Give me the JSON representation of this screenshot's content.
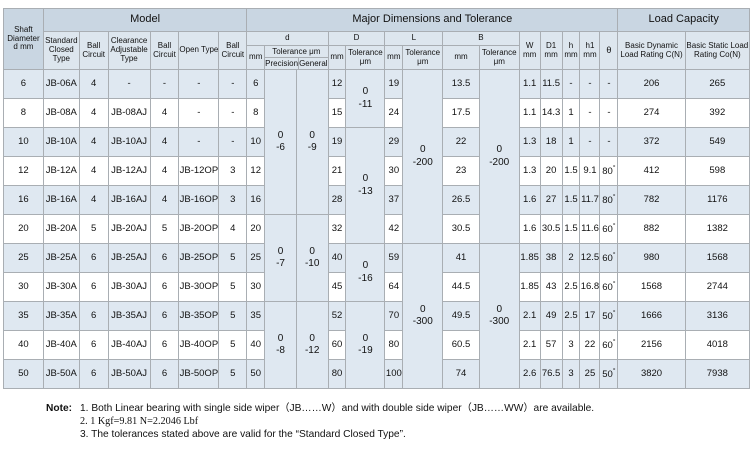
{
  "header": {
    "shaft_diameter": "Shaft Diameter d mm",
    "model": "Model",
    "major": "Major Dimensions and Tolerance",
    "load": "Load Capacity",
    "standard_closed_type": "Standard Closed Type",
    "ball_circuit": "Ball Circuit",
    "clearance_adjustable_type": "Clearance Adjustable Type",
    "open_type": "Open Type",
    "d": "d",
    "D": "D",
    "L": "L",
    "B": "B",
    "W": "W mm",
    "D1": "D1 mm",
    "h": "h mm",
    "h1": "h1 mm",
    "theta": "θ",
    "mm": "mm",
    "tolerance_um": "Tolerance μm",
    "precision": "Precision",
    "general": "General",
    "dynamic": "Basic Dynamic Load Rating C(N)",
    "static": "Basic Static Load Rating Co(N)"
  },
  "rows": [
    {
      "shaft": "6",
      "closed": "JB-06A",
      "ball1": "4",
      "clearance": "-",
      "ball2": "-",
      "open": "-",
      "ball3": "-",
      "d": "6",
      "D": "12",
      "L": "19",
      "B": "13.5",
      "W": "1.1",
      "D1": "11.5",
      "h": "-",
      "h1": "-",
      "theta": "-",
      "C": "206",
      "Co": "265"
    },
    {
      "shaft": "8",
      "closed": "JB-08A",
      "ball1": "4",
      "clearance": "JB-08AJ",
      "ball2": "4",
      "open": "-",
      "ball3": "-",
      "d": "8",
      "D": "15",
      "L": "24",
      "B": "17.5",
      "W": "1.1",
      "D1": "14.3",
      "h": "1",
      "h1": "-",
      "theta": "-",
      "C": "274",
      "Co": "392"
    },
    {
      "shaft": "10",
      "closed": "JB-10A",
      "ball1": "4",
      "clearance": "JB-10AJ",
      "ball2": "4",
      "open": "-",
      "ball3": "-",
      "d": "10",
      "D": "19",
      "L": "29",
      "B": "22",
      "W": "1.3",
      "D1": "18",
      "h": "1",
      "h1": "-",
      "theta": "-",
      "C": "372",
      "Co": "549"
    },
    {
      "shaft": "12",
      "closed": "JB-12A",
      "ball1": "4",
      "clearance": "JB-12AJ",
      "ball2": "4",
      "open": "JB-12OP",
      "ball3": "3",
      "d": "12",
      "D": "21",
      "L": "30",
      "B": "23",
      "W": "1.3",
      "D1": "20",
      "h": "1.5",
      "h1": "9.1",
      "theta": "80",
      "C": "412",
      "Co": "598"
    },
    {
      "shaft": "16",
      "closed": "JB-16A",
      "ball1": "4",
      "clearance": "JB-16AJ",
      "ball2": "4",
      "open": "JB-16OP",
      "ball3": "3",
      "d": "16",
      "D": "28",
      "L": "37",
      "B": "26.5",
      "W": "1.6",
      "D1": "27",
      "h": "1.5",
      "h1": "11.7",
      "theta": "80",
      "C": "782",
      "Co": "1176"
    },
    {
      "shaft": "20",
      "closed": "JB-20A",
      "ball1": "5",
      "clearance": "JB-20AJ",
      "ball2": "5",
      "open": "JB-20OP",
      "ball3": "4",
      "d": "20",
      "D": "32",
      "L": "42",
      "B": "30.5",
      "W": "1.6",
      "D1": "30.5",
      "h": "1.5",
      "h1": "11.6",
      "theta": "60",
      "C": "882",
      "Co": "1382"
    },
    {
      "shaft": "25",
      "closed": "JB-25A",
      "ball1": "6",
      "clearance": "JB-25AJ",
      "ball2": "6",
      "open": "JB-25OP",
      "ball3": "5",
      "d": "25",
      "D": "40",
      "L": "59",
      "B": "41",
      "W": "1.85",
      "D1": "38",
      "h": "2",
      "h1": "12.5",
      "theta": "60",
      "C": "980",
      "Co": "1568"
    },
    {
      "shaft": "30",
      "closed": "JB-30A",
      "ball1": "6",
      "clearance": "JB-30AJ",
      "ball2": "6",
      "open": "JB-30OP",
      "ball3": "5",
      "d": "30",
      "D": "45",
      "L": "64",
      "B": "44.5",
      "W": "1.85",
      "D1": "43",
      "h": "2.5",
      "h1": "16.8",
      "theta": "60",
      "C": "1568",
      "Co": "2744"
    },
    {
      "shaft": "35",
      "closed": "JB-35A",
      "ball1": "6",
      "clearance": "JB-35AJ",
      "ball2": "6",
      "open": "JB-35OP",
      "ball3": "5",
      "d": "35",
      "D": "52",
      "L": "70",
      "B": "49.5",
      "W": "2.1",
      "D1": "49",
      "h": "2.5",
      "h1": "17",
      "theta": "50",
      "C": "1666",
      "Co": "3136"
    },
    {
      "shaft": "40",
      "closed": "JB-40A",
      "ball1": "6",
      "clearance": "JB-40AJ",
      "ball2": "6",
      "open": "JB-40OP",
      "ball3": "5",
      "d": "40",
      "D": "60",
      "L": "80",
      "B": "60.5",
      "W": "2.1",
      "D1": "57",
      "h": "3",
      "h1": "22",
      "theta": "60",
      "C": "2156",
      "Co": "4018"
    },
    {
      "shaft": "50",
      "closed": "JB-50A",
      "ball1": "6",
      "clearance": "JB-50AJ",
      "ball2": "6",
      "open": "JB-50OP",
      "ball3": "5",
      "d": "50",
      "D": "80",
      "L": "100",
      "B": "74",
      "W": "2.6",
      "D1": "76.5",
      "h": "3",
      "h1": "25",
      "theta": "50",
      "C": "3820",
      "Co": "7938"
    }
  ],
  "tolerances": {
    "d_precision": [
      {
        "upper": "0",
        "lower": "-6"
      },
      {
        "upper": "0",
        "lower": "-7"
      },
      {
        "upper": "0",
        "lower": "-8"
      }
    ],
    "d_general": [
      {
        "upper": "0",
        "lower": "-9"
      },
      {
        "upper": "0",
        "lower": "-10"
      },
      {
        "upper": "0",
        "lower": "-12"
      }
    ],
    "D": [
      {
        "upper": "0",
        "lower": "-11"
      },
      {
        "upper": "0",
        "lower": "-13"
      },
      {
        "upper": "0",
        "lower": "-16"
      },
      {
        "upper": "0",
        "lower": "-19"
      }
    ],
    "L": [
      {
        "upper": "0",
        "lower": "-200"
      },
      {
        "upper": "0",
        "lower": "-300"
      }
    ],
    "B": [
      {
        "upper": "0",
        "lower": "-200"
      },
      {
        "upper": "0",
        "lower": "-300"
      }
    ]
  },
  "notes": {
    "lead": "Note:",
    "items": [
      "1. Both Linear bearing with single side wiper（JB……W）and with double side wiper（JB……WW）are available.",
      "2. 1 Kgf=9.81 N=2.2046 Lbf",
      "3. The tolerances stated above are valid for the “Standard Closed Type”."
    ]
  }
}
